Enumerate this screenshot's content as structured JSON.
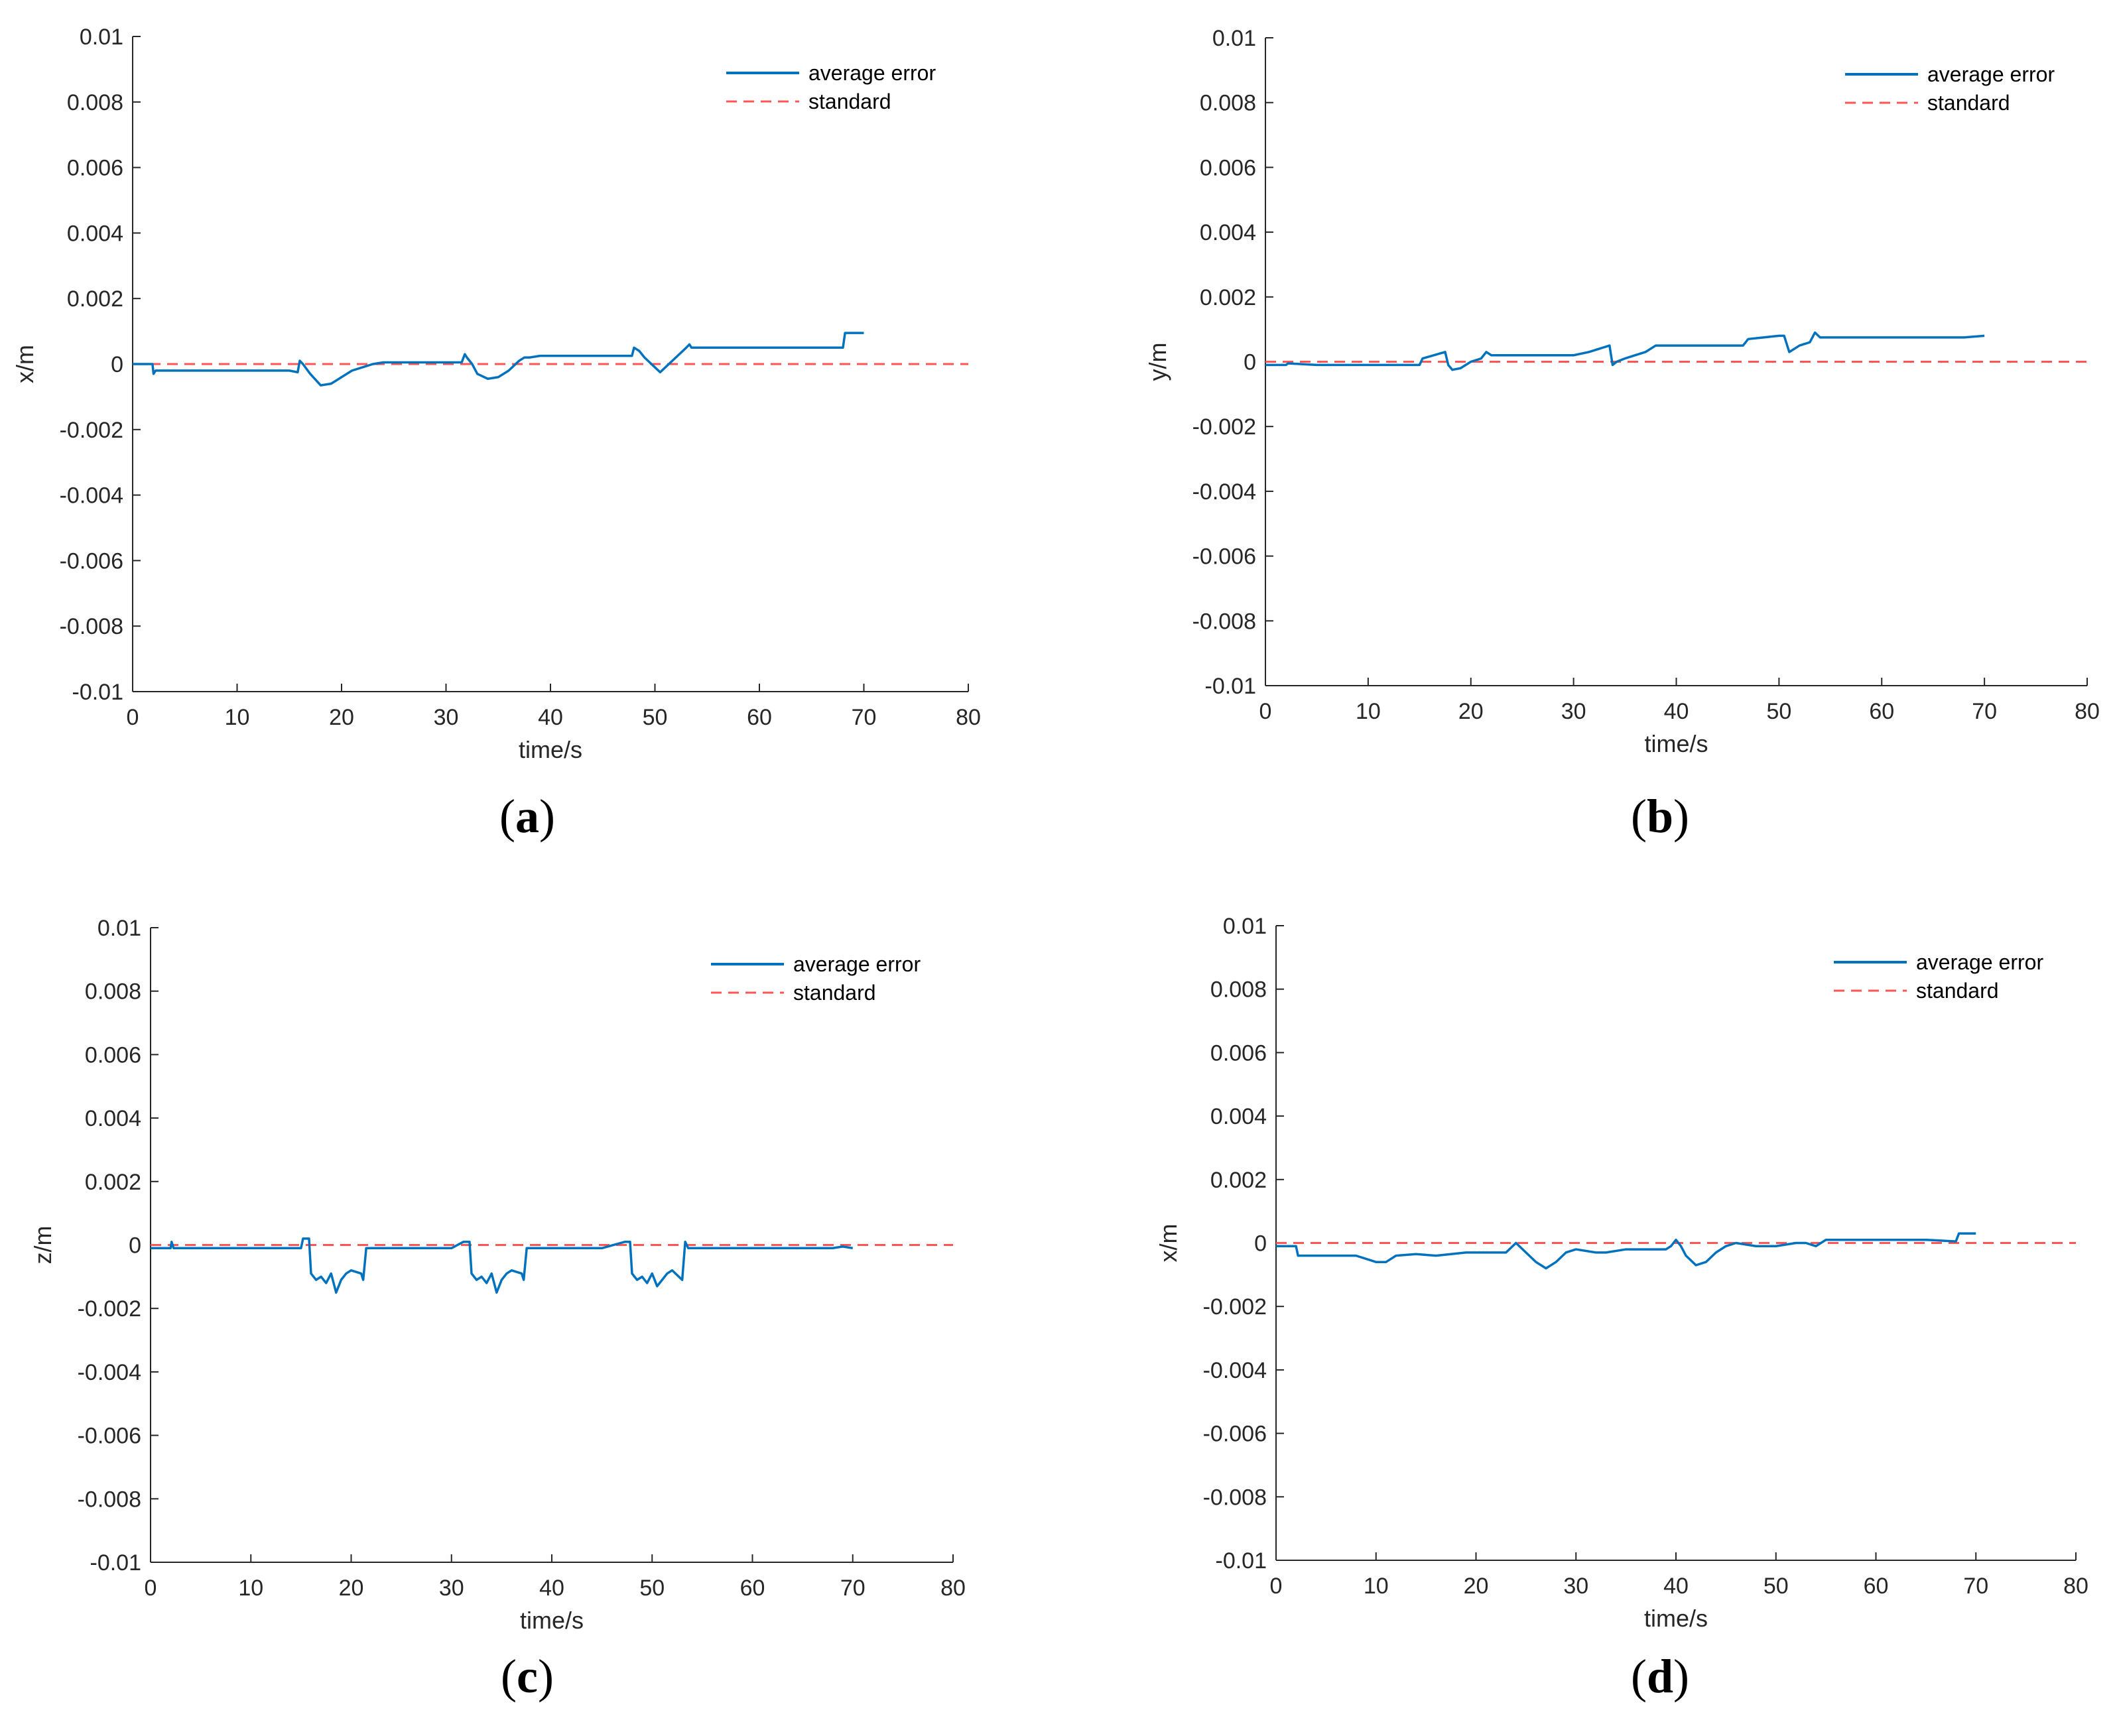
{
  "colors": {
    "series": "#0072BD",
    "standard": "#FF5555",
    "axis": "#262626"
  },
  "chart_data": [
    {
      "type": "line",
      "caption_letter": "a",
      "xlabel": "time/s",
      "ylabel": "x/m",
      "xlim": [
        0,
        80
      ],
      "ylim": [
        -0.01,
        0.01
      ],
      "x_ticks": [
        0,
        10,
        20,
        30,
        40,
        50,
        60,
        70,
        80
      ],
      "y_ticks": [
        -0.01,
        -0.008,
        -0.006,
        -0.004,
        -0.002,
        0,
        0.002,
        0.004,
        0.006,
        0.008,
        0.01
      ],
      "y_tick_labels": [
        "-0.01",
        "-0.008",
        "-0.006",
        "-0.004",
        "-0.002",
        "0",
        "0.002",
        "0.004",
        "0.006",
        "0.008",
        "0.01"
      ],
      "legend": [
        "average error",
        "standard"
      ],
      "series": [
        {
          "name": "average error",
          "x": [
            0,
            1.9,
            2,
            2.2,
            5,
            10,
            15,
            15.8,
            16,
            16.3,
            17,
            18,
            19,
            20,
            21,
            22,
            23,
            24,
            25,
            30,
            31.5,
            31.8,
            32,
            32.5,
            33,
            34,
            35,
            36,
            37,
            37.5,
            38,
            39,
            40,
            45,
            47.5,
            47.8,
            48,
            48.5,
            49,
            50,
            50.5,
            51,
            52,
            53,
            53.3,
            53.5,
            60,
            68,
            68.2,
            68.5,
            70
          ],
          "y": [
            0,
            0,
            -0.0003,
            -0.0002,
            -0.0002,
            -0.0002,
            -0.0002,
            -0.00025,
            0.0001,
            0,
            -0.0003,
            -0.00065,
            -0.0006,
            -0.0004,
            -0.0002,
            -0.0001,
            0.0,
            5e-05,
            5e-05,
            5e-05,
            5e-05,
            0.0003,
            0.0002,
            0,
            -0.0003,
            -0.00045,
            -0.0004,
            -0.0002,
            0.0001,
            0.0002,
            0.0002,
            0.00025,
            0.00025,
            0.00025,
            0.00025,
            0.00025,
            0.0005,
            0.0004,
            0.0002,
            -0.0001,
            -0.00025,
            -0.0001,
            0.0002,
            0.0005,
            0.0006,
            0.0005,
            0.0005,
            0.0005,
            0.00095,
            0.00095,
            0.00095
          ]
        },
        {
          "name": "standard",
          "x": [
            0,
            80
          ],
          "y": [
            0,
            0
          ]
        }
      ]
    },
    {
      "type": "line",
      "caption_letter": "b",
      "xlabel": "time/s",
      "ylabel": "y/m",
      "xlim": [
        0,
        80
      ],
      "ylim": [
        -0.01,
        0.01
      ],
      "x_ticks": [
        0,
        10,
        20,
        30,
        40,
        50,
        60,
        70,
        80
      ],
      "y_ticks": [
        -0.01,
        -0.008,
        -0.006,
        -0.004,
        -0.002,
        0,
        0.002,
        0.004,
        0.006,
        0.008,
        0.01
      ],
      "y_tick_labels": [
        "-0.01",
        "-0.008",
        "-0.006",
        "-0.004",
        "-0.002",
        "0",
        "0.002",
        "0.004",
        "0.006",
        "0.008",
        "0.01"
      ],
      "legend": [
        "average error",
        "standard"
      ],
      "series": [
        {
          "name": "average error",
          "x": [
            0,
            2,
            2.2,
            5,
            10,
            15,
            15.3,
            17.5,
            17.8,
            18.2,
            19,
            20,
            21,
            21.5,
            22,
            25,
            30,
            31.5,
            33.5,
            33.8,
            34.2,
            35,
            36,
            37,
            38,
            40,
            45,
            46.5,
            47,
            50,
            50.5,
            51,
            52,
            53,
            53.5,
            54,
            60,
            68,
            70
          ],
          "y": [
            -0.0001,
            -0.0001,
            -5e-05,
            -0.0001,
            -0.0001,
            -0.0001,
            0.0001,
            0.0003,
            -0.0001,
            -0.00025,
            -0.0002,
            0,
            0.0001,
            0.0003,
            0.0002,
            0.0002,
            0.0002,
            0.0003,
            0.0005,
            -0.0001,
            0,
            0.0001,
            0.0002,
            0.0003,
            0.0005,
            0.0005,
            0.0005,
            0.0005,
            0.0007,
            0.0008,
            0.0008,
            0.0003,
            0.0005,
            0.0006,
            0.0009,
            0.00075,
            0.00075,
            0.00075,
            0.0008
          ]
        },
        {
          "name": "standard",
          "x": [
            0,
            80
          ],
          "y": [
            0,
            0
          ]
        }
      ]
    },
    {
      "type": "line",
      "caption_letter": "c",
      "xlabel": "time/s",
      "ylabel": "z/m",
      "xlim": [
        0,
        80
      ],
      "ylim": [
        -0.01,
        0.01
      ],
      "x_ticks": [
        0,
        10,
        20,
        30,
        40,
        50,
        60,
        70,
        80
      ],
      "y_ticks": [
        -0.01,
        -0.008,
        -0.006,
        -0.004,
        -0.002,
        0,
        0.002,
        0.004,
        0.006,
        0.008,
        0.01
      ],
      "y_tick_labels": [
        "-0.01",
        "-0.008",
        "-0.006",
        "-0.004",
        "-0.002",
        "0",
        "0.002",
        "0.004",
        "0.006",
        "0.008",
        "0.01"
      ],
      "legend": [
        "average error",
        "standard"
      ],
      "series": [
        {
          "name": "average error",
          "x": [
            0,
            2,
            2.1,
            2.3,
            5,
            10,
            15,
            15.2,
            15.8,
            16,
            16.5,
            17,
            17.5,
            18,
            18.5,
            19,
            19.5,
            20,
            21,
            21.2,
            21.5,
            25,
            30,
            31.2,
            31.8,
            32,
            32.5,
            33,
            33.5,
            34,
            34.5,
            35,
            35.5,
            36,
            37,
            37.2,
            37.5,
            40,
            45,
            47.3,
            47.8,
            48,
            48.5,
            49,
            49.5,
            50,
            50.5,
            51,
            51.5,
            52,
            53,
            53.3,
            53.6,
            60,
            65,
            68,
            69,
            70
          ],
          "y": [
            -0.0001,
            -0.0001,
            0.0001,
            -0.0001,
            -0.0001,
            -0.0001,
            -0.0001,
            0.0002,
            0.0002,
            -0.0009,
            -0.0011,
            -0.001,
            -0.0012,
            -0.0009,
            -0.0015,
            -0.0011,
            -0.0009,
            -0.0008,
            -0.0009,
            -0.0011,
            -0.0001,
            -0.0001,
            -0.0001,
            0.0001,
            0.0001,
            -0.0009,
            -0.0011,
            -0.001,
            -0.0012,
            -0.0009,
            -0.0015,
            -0.0011,
            -0.0009,
            -0.0008,
            -0.0009,
            -0.0011,
            -0.0001,
            -0.0001,
            -0.0001,
            0.0001,
            0.0001,
            -0.0009,
            -0.0011,
            -0.001,
            -0.0012,
            -0.0009,
            -0.0013,
            -0.0011,
            -0.0009,
            -0.0008,
            -0.0011,
            0.0001,
            -0.0001,
            -0.0001,
            -0.0001,
            -0.0001,
            -5e-05,
            -0.0001
          ]
        },
        {
          "name": "standard",
          "x": [
            0,
            80
          ],
          "y": [
            0,
            0
          ]
        }
      ]
    },
    {
      "type": "line",
      "caption_letter": "d",
      "xlabel": "time/s",
      "ylabel": "x/m",
      "xlim": [
        0,
        80
      ],
      "ylim": [
        -0.01,
        0.01
      ],
      "x_ticks": [
        0,
        10,
        20,
        30,
        40,
        50,
        60,
        70,
        80
      ],
      "y_ticks": [
        -0.01,
        -0.008,
        -0.006,
        -0.004,
        -0.002,
        0,
        0.002,
        0.004,
        0.006,
        0.008,
        0.01
      ],
      "y_tick_labels": [
        "-0.01",
        "-0.008",
        "-0.006",
        "-0.004",
        "-0.002",
        "0",
        "0.002",
        "0.004",
        "0.006",
        "0.008",
        "0.01"
      ],
      "legend": [
        "average error",
        "standard"
      ],
      "series": [
        {
          "name": "average error",
          "x": [
            0,
            2,
            2.2,
            5,
            8,
            10,
            11,
            12,
            14,
            16,
            19,
            20,
            23,
            24,
            25,
            26,
            27,
            28,
            29,
            30,
            32,
            33,
            35,
            37,
            39,
            39.5,
            40,
            40.5,
            41,
            42,
            43,
            44,
            45,
            46,
            48,
            50,
            52,
            53,
            54,
            55,
            56,
            60,
            65,
            68,
            68.3,
            70
          ],
          "y": [
            -0.0001,
            -0.0001,
            -0.0004,
            -0.0004,
            -0.0004,
            -0.0006,
            -0.0006,
            -0.0004,
            -0.00035,
            -0.0004,
            -0.0003,
            -0.0003,
            -0.0003,
            0.0,
            -0.0003,
            -0.0006,
            -0.0008,
            -0.0006,
            -0.0003,
            -0.0002,
            -0.0003,
            -0.0003,
            -0.0002,
            -0.0002,
            -0.0002,
            -0.0001,
            0.0001,
            -0.0001,
            -0.0004,
            -0.0007,
            -0.0006,
            -0.0003,
            -0.0001,
            0.0,
            -0.0001,
            -0.0001,
            0.0,
            0.0,
            -0.0001,
            0.0001,
            0.0001,
            0.0001,
            0.0001,
            5e-05,
            0.0003,
            0.0003
          ]
        },
        {
          "name": "standard",
          "x": [
            0,
            80
          ],
          "y": [
            0,
            0
          ]
        }
      ]
    }
  ]
}
